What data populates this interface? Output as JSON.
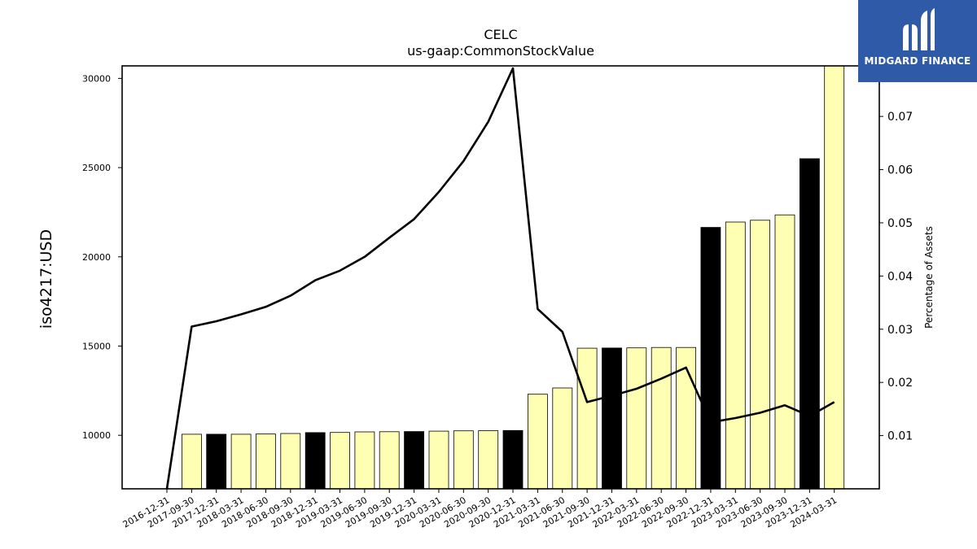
{
  "logo": {
    "text": "MIDGARD FINANCE",
    "background": "#2f5aa8"
  },
  "chart_data": {
    "type": "bar",
    "title": "CELC",
    "subtitle": "us-gaap:CommonStockValue",
    "ylabel": "iso4217:USD",
    "y2label": "Percentage of Assets",
    "ylim": [
      7000,
      30700
    ],
    "y2lim": [
      0.0,
      0.0795
    ],
    "yticks": [
      10000,
      15000,
      20000,
      25000,
      30000
    ],
    "y2ticks": [
      0.01,
      0.02,
      0.03,
      0.04,
      0.05,
      0.06,
      0.07
    ],
    "categories": [
      "2016-12-31",
      "2017-09-30",
      "2017-12-31",
      "2018-03-31",
      "2018-06-30",
      "2018-09-30",
      "2018-12-31",
      "2019-03-31",
      "2019-06-30",
      "2019-09-30",
      "2019-12-31",
      "2020-03-31",
      "2020-06-30",
      "2020-09-30",
      "2020-12-31",
      "2021-03-31",
      "2021-06-30",
      "2021-09-30",
      "2021-12-31",
      "2022-03-31",
      "2022-06-30",
      "2022-09-30",
      "2022-12-31",
      "2023-03-31",
      "2023-06-30",
      "2023-09-30",
      "2023-12-31",
      "2024-03-31"
    ],
    "series": [
      {
        "type": "bar",
        "values": [
          null,
          10060,
          10060,
          10060,
          10070,
          10100,
          10150,
          10160,
          10190,
          10200,
          10210,
          10230,
          10250,
          10260,
          10270,
          12300,
          12650,
          14880,
          14890,
          14900,
          14920,
          14920,
          21650,
          21950,
          22050,
          22350,
          25500,
          30700
        ],
        "highlight": [
          false,
          false,
          true,
          false,
          false,
          false,
          true,
          false,
          false,
          false,
          true,
          false,
          false,
          false,
          true,
          false,
          false,
          false,
          true,
          false,
          false,
          false,
          true,
          false,
          false,
          false,
          true,
          false
        ]
      },
      {
        "type": "line",
        "axis": "right",
        "values": [
          0.0,
          0.0305,
          0.0315,
          0.0328,
          0.0342,
          0.0363,
          0.0392,
          0.041,
          0.0436,
          0.0472,
          0.0507,
          0.0558,
          0.0616,
          0.069,
          0.0801,
          0.0338,
          0.0295,
          0.0163,
          0.0175,
          0.0188,
          0.0207,
          0.0228,
          0.0125,
          0.0133,
          0.0143,
          0.0157,
          0.0137,
          0.0163
        ]
      }
    ],
    "colors": {
      "bar": "#ffffb3",
      "bar_highlight": "#000000",
      "line": "#000000"
    }
  }
}
